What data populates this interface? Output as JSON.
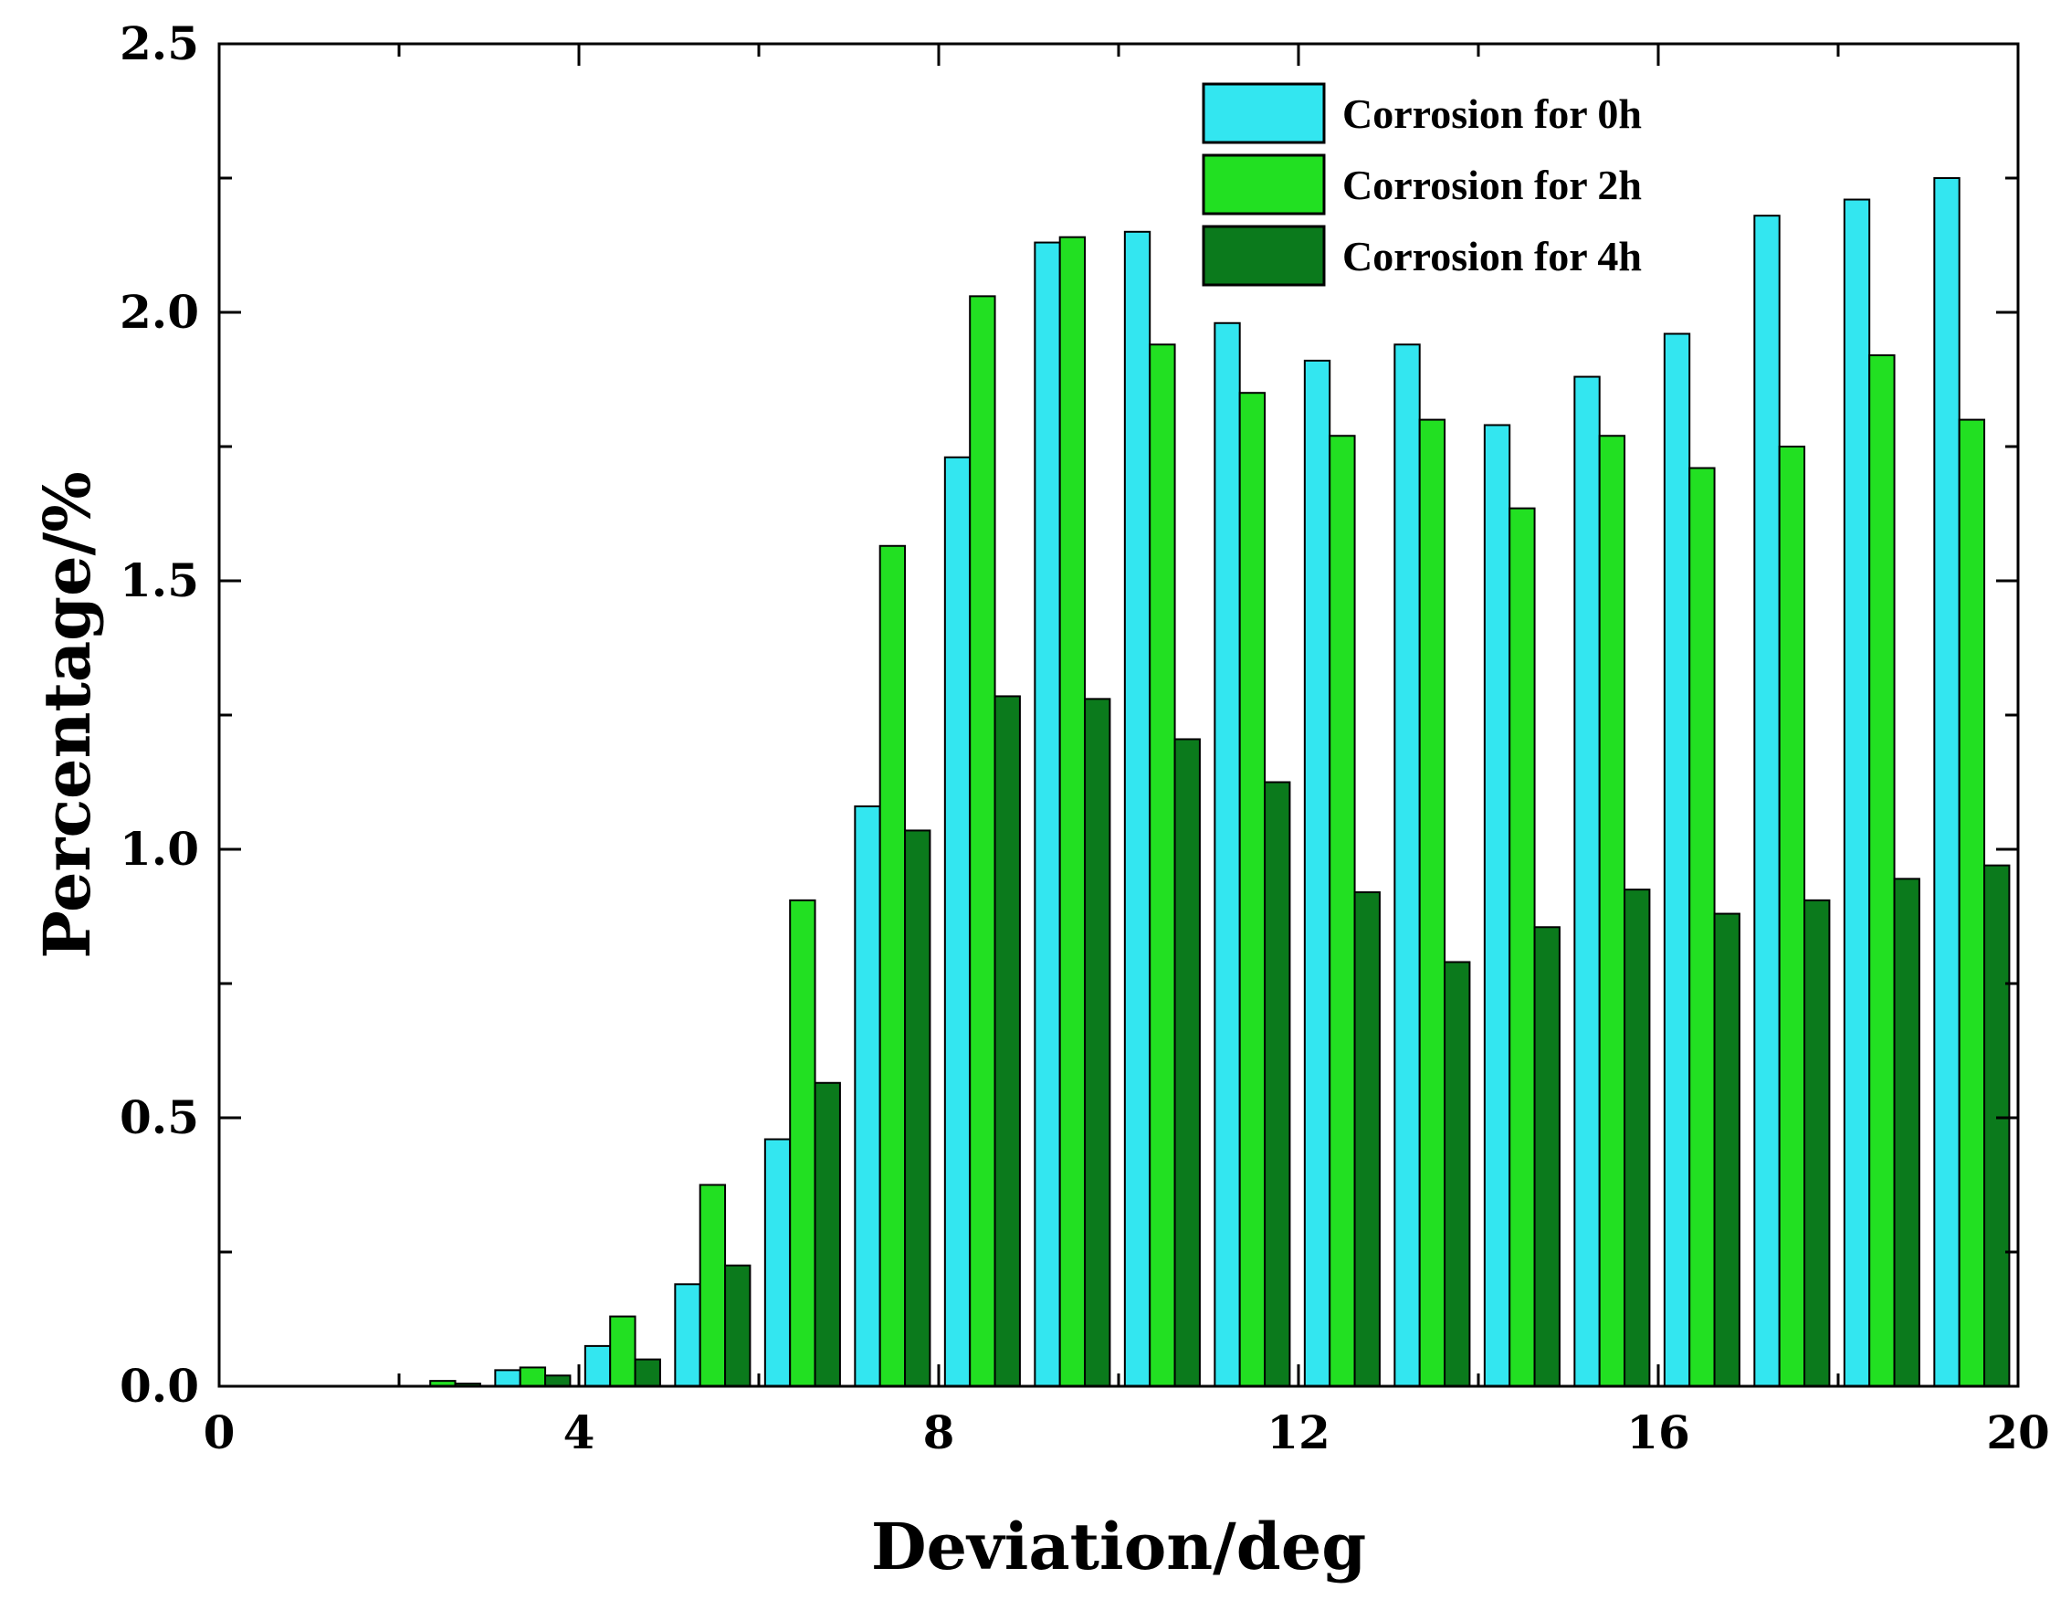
{
  "chart_data": {
    "type": "bar",
    "title": "",
    "xlabel": "Deviation/deg",
    "ylabel": "Percentage/%",
    "xlim": [
      0,
      20
    ],
    "ylim": [
      0,
      2.5
    ],
    "x_ticks": [
      "0",
      "4",
      "8",
      "12",
      "16",
      "20"
    ],
    "y_ticks": [
      "0.0",
      "0.5",
      "1.0",
      "1.5",
      "2.0",
      "2.5"
    ],
    "bin_width": 1,
    "categories": [
      "0",
      "1",
      "2",
      "3",
      "4",
      "5",
      "6",
      "7",
      "8",
      "9",
      "10",
      "11",
      "12",
      "13",
      "14",
      "15",
      "16",
      "17",
      "18",
      "19"
    ],
    "legend_position": "top-right",
    "series": [
      {
        "name": "Corrosion for 0h",
        "color": "#33e6f0",
        "values": [
          0.0,
          0.0,
          0.0,
          0.03,
          0.075,
          0.19,
          0.46,
          1.08,
          1.73,
          2.13,
          2.15,
          1.98,
          1.91,
          1.94,
          1.79,
          1.88,
          1.96,
          2.18,
          2.21,
          2.25
        ]
      },
      {
        "name": "Corrosion for 2h",
        "color": "#22e022",
        "values": [
          0.0,
          0.0,
          0.01,
          0.035,
          0.13,
          0.375,
          0.905,
          1.565,
          2.03,
          2.14,
          1.94,
          1.85,
          1.77,
          1.8,
          1.635,
          1.77,
          1.71,
          1.75,
          1.92,
          1.8
        ]
      },
      {
        "name": "Corrosion for 4h",
        "color": "#0b7a1c",
        "values": [
          0.0,
          0.0,
          0.005,
          0.02,
          0.05,
          0.225,
          0.565,
          1.035,
          1.285,
          1.28,
          1.205,
          1.125,
          0.92,
          0.79,
          0.855,
          0.925,
          0.88,
          0.905,
          0.945,
          0.97
        ]
      }
    ]
  }
}
